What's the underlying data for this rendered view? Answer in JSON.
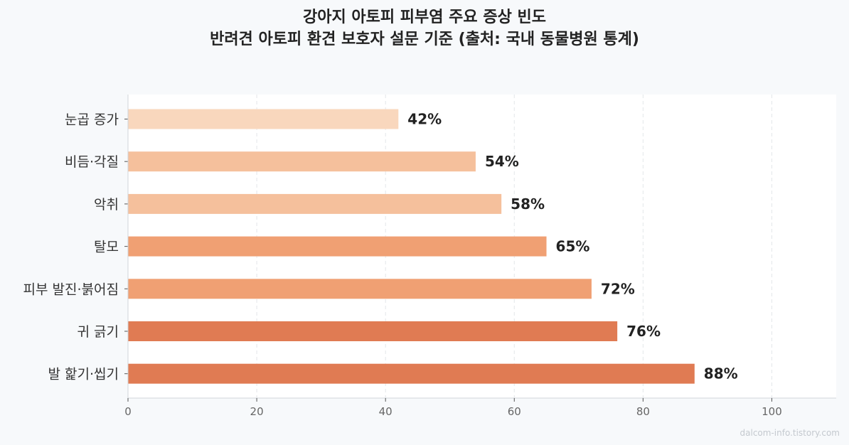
{
  "title_lines": [
    "강아지 아토피 피부염 주요 증상 빈도",
    "반려견 아토피 환견 보호자 설문 기준 (출처: 국내 동물병원 통계)"
  ],
  "watermark": "dalcom-info.tistory.com",
  "chart_data": {
    "type": "bar",
    "orientation": "horizontal",
    "title": "강아지 아토피 피부염 주요 증상 빈도",
    "subtitle": "반려견 아토피 환견 보호자 설문 기준 (출처: 국내 동물병원 통계)",
    "categories": [
      "눈곱 증가",
      "비듬·각질",
      "악취",
      "탈모",
      "피부 발진·붉어짐",
      "귀 긁기",
      "발 핥기·씹기"
    ],
    "values": [
      42,
      54,
      58,
      65,
      72,
      76,
      88
    ],
    "data_labels": [
      "42%",
      "54%",
      "58%",
      "65%",
      "72%",
      "76%",
      "88%"
    ],
    "bar_colors": [
      "#f9d7bd",
      "#f5c09c",
      "#f5c09c",
      "#f0a073",
      "#f0a073",
      "#e07b53",
      "#e07b53"
    ],
    "xlim": [
      0,
      110
    ],
    "xticks": [
      0,
      20,
      40,
      60,
      80,
      100
    ],
    "xtick_labels": [
      "0",
      "20",
      "40",
      "60",
      "80",
      "100"
    ],
    "xlabel": "",
    "ylabel": "",
    "grid": "vertical dashed",
    "legend": "none"
  }
}
